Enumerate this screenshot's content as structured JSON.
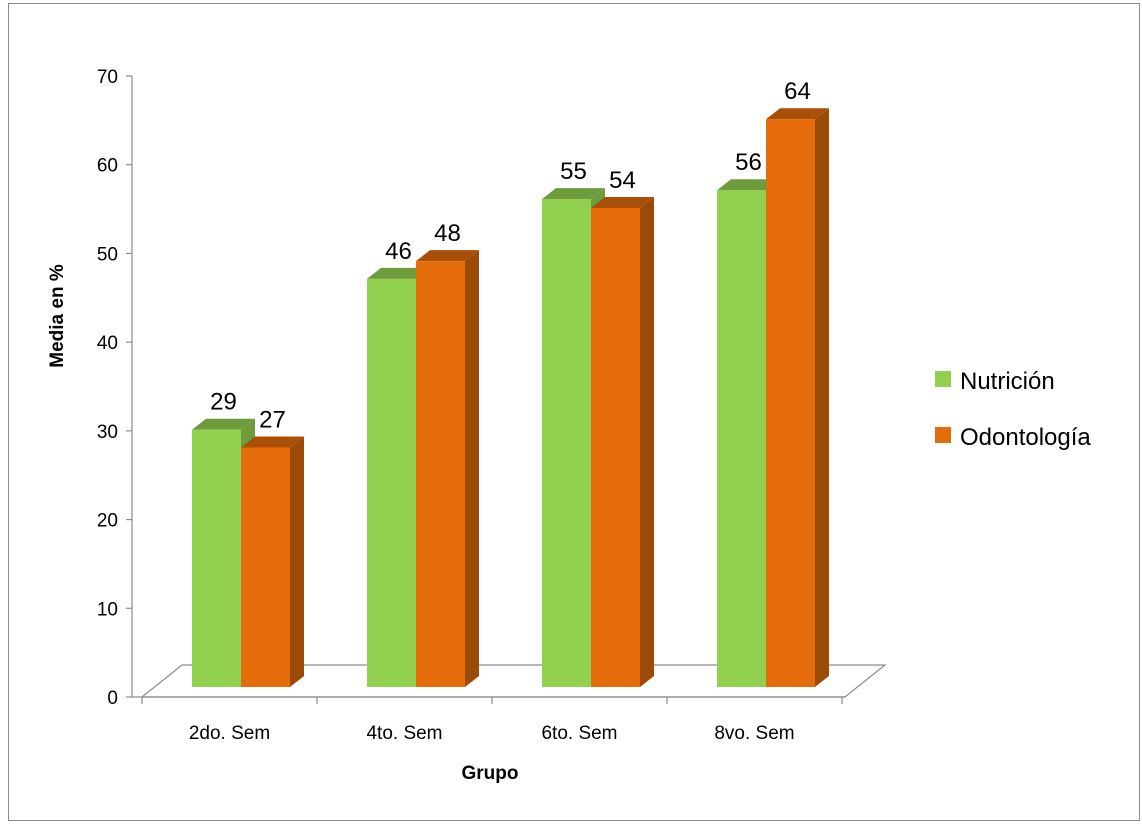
{
  "chart_data": {
    "type": "bar",
    "title": "",
    "xlabel": "Grupo",
    "ylabel": "Media en %",
    "ylim": [
      0,
      70
    ],
    "yticks": [
      0,
      10,
      20,
      30,
      40,
      50,
      60,
      70
    ],
    "categories": [
      "2do. Sem",
      "4to. Sem",
      "6to. Sem",
      "8vo. Sem"
    ],
    "series": [
      {
        "name": "Nutrición",
        "values": [
          29,
          46,
          55,
          56
        ],
        "color": "#92d050",
        "top_color": "#6e9c3c"
      },
      {
        "name": "Odontología",
        "values": [
          27,
          48,
          54,
          64
        ],
        "color": "#e46c0a",
        "top_color": "#a94f07",
        "side_color": "#9b4a08"
      }
    ],
    "grid": false,
    "legend_position": "right",
    "style": "3d-clustered-column"
  }
}
